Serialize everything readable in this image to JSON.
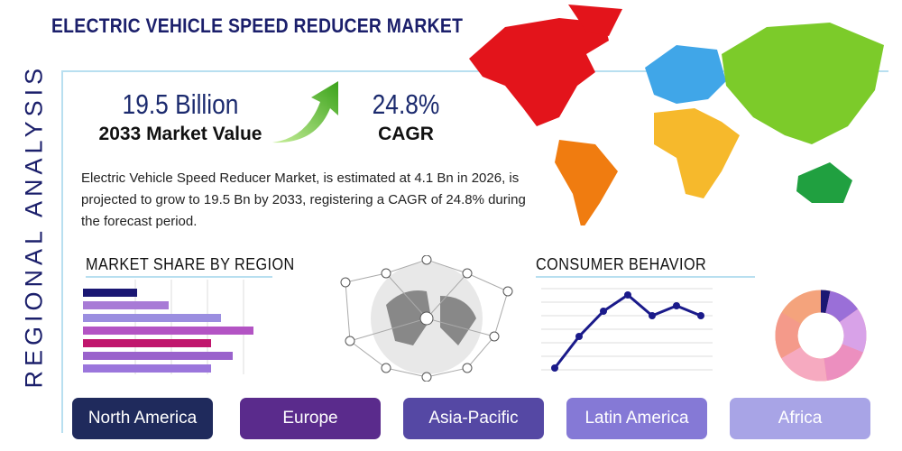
{
  "header": {
    "title": "ELECTRIC VEHICLE SPEED REDUCER MARKET",
    "side_label": "REGIONAL ANALYSIS"
  },
  "stats": [
    {
      "value": "19.5 Billion",
      "label": "2033 Market Value"
    },
    {
      "value": "24.8%",
      "label": "CAGR"
    }
  ],
  "description": "Electric Vehicle Speed Reducer Market, is estimated at 4.1 Bn in 2026, is projected to grow to 19.5 Bn by 2033, registering a CAGR of 24.8% during the forecast period.",
  "sections": [
    "MARKET SHARE BY REGION",
    "CONSUMER BEHAVIOR"
  ],
  "regions": [
    "North America",
    "Europe",
    "Asia-Pacific",
    "Latin America",
    "Africa"
  ]
}
